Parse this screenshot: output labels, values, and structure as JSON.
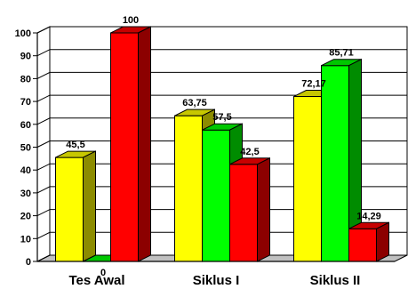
{
  "chart_data": {
    "type": "bar",
    "categories": [
      "Tes Awal",
      "Siklus I",
      "Siklus II"
    ],
    "series": [
      {
        "values": [
          45.5,
          63.75,
          72.17
        ],
        "labels": [
          "45,5",
          "63,75",
          "72,17"
        ],
        "color": "#FFFF00"
      },
      {
        "values": [
          0,
          57.5,
          85.71
        ],
        "labels": [
          "0",
          "57,5",
          "85,71"
        ],
        "color": "#00FF00"
      },
      {
        "values": [
          100,
          42.5,
          14.29
        ],
        "labels": [
          "100",
          "42,5",
          "14,29"
        ],
        "color": "#FF0000"
      }
    ],
    "ylim": [
      0,
      100
    ],
    "yticks": [
      0,
      10,
      20,
      30,
      40,
      50,
      60,
      70,
      80,
      90,
      100
    ],
    "grid": true,
    "style": "3d-bars"
  }
}
